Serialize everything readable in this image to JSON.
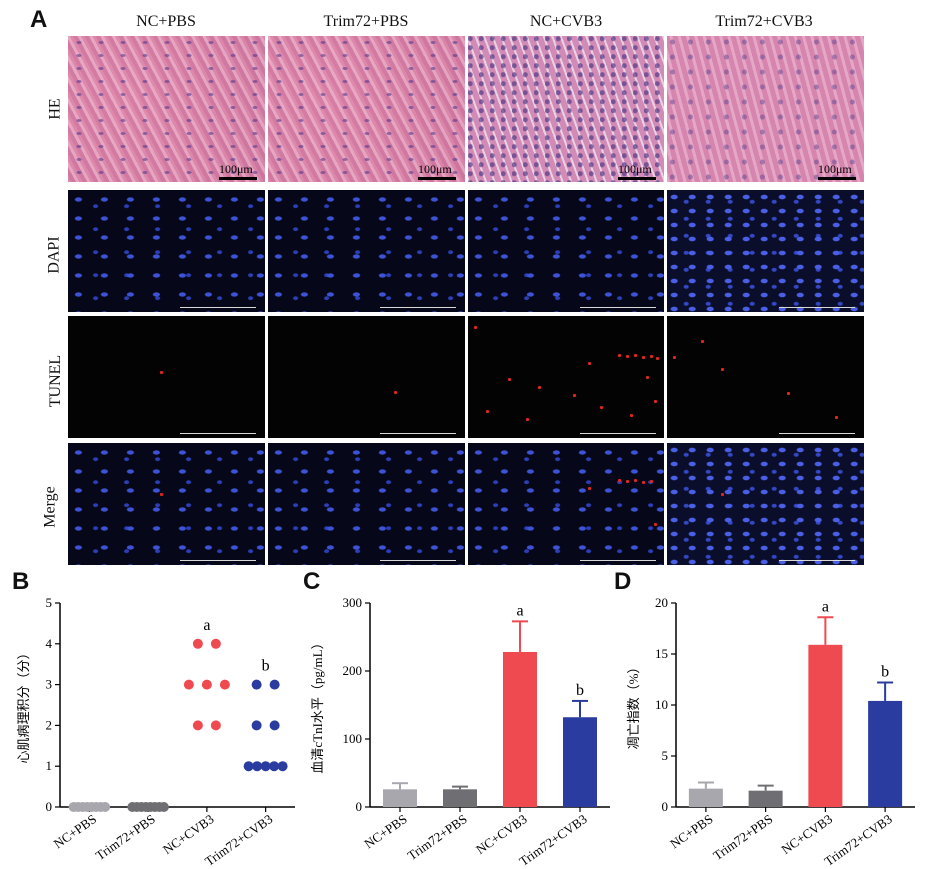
{
  "panelA": {
    "letter": "A",
    "columns": [
      "NC+PBS",
      "Trim72+PBS",
      "NC+CVB3",
      "Trim72+CVB3"
    ],
    "rows": [
      "HE",
      "DAPI",
      "TUNEL",
      "Merge"
    ],
    "scale_label": "100μm"
  },
  "panelB": {
    "letter": "B"
  },
  "panelC": {
    "letter": "C"
  },
  "panelD": {
    "letter": "D"
  },
  "chart_data": [
    {
      "type": "scatter",
      "panel": "B",
      "ylabel": "心肌病理积分（分）",
      "categories": [
        "NC+PBS",
        "Trim72+PBS",
        "NC+CVB3",
        "Trim72+CVB3"
      ],
      "ylim": [
        0,
        5
      ],
      "yticks": [
        0,
        1,
        2,
        3,
        4,
        5
      ],
      "points": [
        [
          0,
          0,
          0,
          0,
          0,
          0,
          0,
          0
        ],
        [
          0,
          0,
          0,
          0,
          0,
          0,
          0,
          0
        ],
        [
          4,
          4,
          3,
          3,
          3,
          2,
          2
        ],
        [
          3,
          3,
          2,
          2,
          1,
          1,
          1,
          1,
          1
        ]
      ],
      "colors": [
        "#a7a7ad",
        "#6f6f73",
        "#ef4a50",
        "#2a3c9f"
      ],
      "annotations": [
        {
          "category": "NC+CVB3",
          "text": "a"
        },
        {
          "category": "Trim72+CVB3",
          "text": "b"
        }
      ]
    },
    {
      "type": "bar",
      "panel": "C",
      "ylabel": "血清cTnI水平（pg/mL）",
      "categories": [
        "NC+PBS",
        "Trim72+PBS",
        "NC+CVB3",
        "Trim72+CVB3"
      ],
      "values": [
        26,
        26,
        228,
        132
      ],
      "errors": [
        9,
        4,
        45,
        24
      ],
      "ylim": [
        0,
        300
      ],
      "yticks": [
        0,
        100,
        200,
        300
      ],
      "colors": [
        "#a7a7ad",
        "#6f6f73",
        "#ef4a50",
        "#2a3c9f"
      ],
      "annotations": [
        {
          "category": "NC+CVB3",
          "text": "a"
        },
        {
          "category": "Trim72+CVB3",
          "text": "b"
        }
      ]
    },
    {
      "type": "bar",
      "panel": "D",
      "ylabel": "凋亡指数（%）",
      "categories": [
        "NC+PBS",
        "Trim72+PBS",
        "NC+CVB3",
        "Trim72+CVB3"
      ],
      "values": [
        1.8,
        1.6,
        15.9,
        10.4
      ],
      "errors": [
        0.6,
        0.5,
        2.7,
        1.8
      ],
      "ylim": [
        0,
        20
      ],
      "yticks": [
        0,
        5,
        10,
        15,
        20
      ],
      "colors": [
        "#a7a7ad",
        "#6f6f73",
        "#ef4a50",
        "#2a3c9f"
      ],
      "annotations": [
        {
          "category": "NC+CVB3",
          "text": "a"
        },
        {
          "category": "Trim72+CVB3",
          "text": "b"
        }
      ]
    }
  ]
}
